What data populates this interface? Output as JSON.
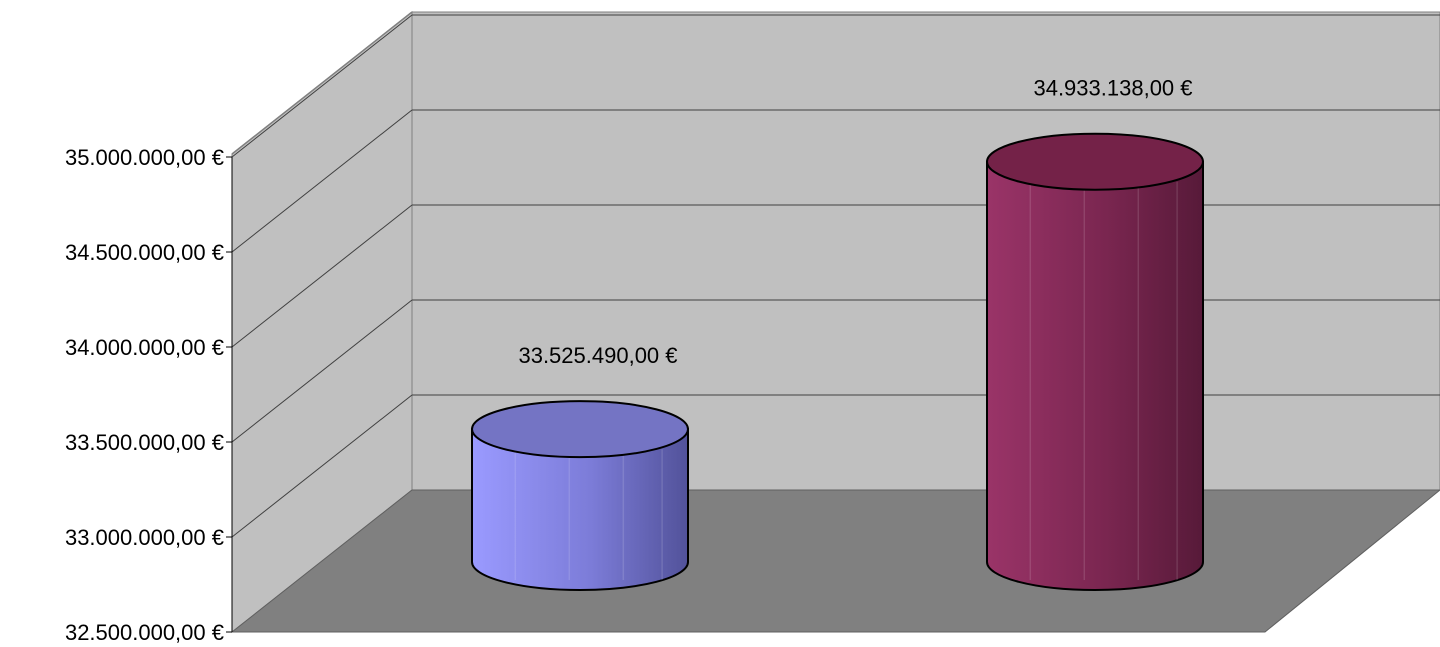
{
  "chart_data": {
    "type": "bar",
    "style": "3d-cylinder",
    "title": "",
    "xlabel": "",
    "ylabel": "",
    "categories": [
      "",
      ""
    ],
    "values": [
      33525490,
      34933138
    ],
    "data_labels": [
      "33.525.490,00 €",
      "34.933.138,00 €"
    ],
    "ylim": [
      32500000,
      35000000
    ],
    "y_ticks": [
      32500000,
      33000000,
      33500000,
      34000000,
      34500000,
      35000000
    ],
    "y_tick_labels": [
      "32.500.000,00 €",
      "33.000.000,00 €",
      "33.500.000,00 €",
      "34.000.000,00 €",
      "34.500.000,00 €",
      "35.000.000,00 €"
    ],
    "grid": true,
    "legend": "none",
    "colors": {
      "bars": [
        "#8C8CF0",
        "#8C2A5A"
      ],
      "back_wall": "#C0C0C0",
      "side_wall": "#C0C0C0",
      "floor": "#808080",
      "gridline": "#404040"
    }
  }
}
